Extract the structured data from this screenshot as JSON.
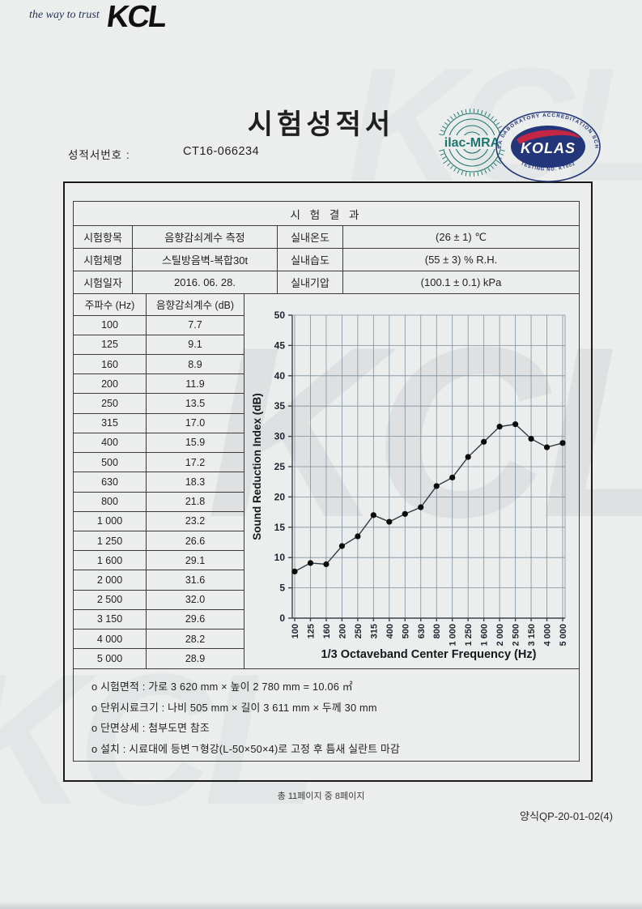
{
  "header": {
    "tagline": "the way to trust",
    "logo_text": "KCL"
  },
  "title": "시험성적서",
  "report": {
    "label": "성적서번호 :",
    "number": "CT16-066234"
  },
  "logos": {
    "ilac_text": "ilac-MRA",
    "kolas_ring_text": "KOREA LABORATORY ACCREDITATION SCHEME",
    "kolas_text": "KOLAS",
    "kolas_sub_text": "TESTING NO. KT002"
  },
  "result_table": {
    "title": "시 험 결 과",
    "rows": [
      {
        "label": "시험항목",
        "value": "음향감쇠계수 측정",
        "label2": "실내온도",
        "value2": "(26 ± 1) ℃"
      },
      {
        "label": "시험체명",
        "value": "스틸방음벽-복합30t",
        "label2": "실내습도",
        "value2": "(55 ± 3) % R.H."
      },
      {
        "label": "시험일자",
        "value": "2016. 06. 28.",
        "label2": "실내기압",
        "value2": "(100.1 ± 0.1) kPa"
      }
    ]
  },
  "freq_table": {
    "col1": "주파수 (Hz)",
    "col2": "음향감쇠계수 (dB)",
    "rows": [
      [
        "100",
        "7.7"
      ],
      [
        "125",
        "9.1"
      ],
      [
        "160",
        "8.9"
      ],
      [
        "200",
        "11.9"
      ],
      [
        "250",
        "13.5"
      ],
      [
        "315",
        "17.0"
      ],
      [
        "400",
        "15.9"
      ],
      [
        "500",
        "17.2"
      ],
      [
        "630",
        "18.3"
      ],
      [
        "800",
        "21.8"
      ],
      [
        "1 000",
        "23.2"
      ],
      [
        "1 250",
        "26.6"
      ],
      [
        "1 600",
        "29.1"
      ],
      [
        "2 000",
        "31.6"
      ],
      [
        "2 500",
        "32.0"
      ],
      [
        "3 150",
        "29.6"
      ],
      [
        "4 000",
        "28.2"
      ],
      [
        "5 000",
        "28.9"
      ]
    ]
  },
  "chart_data": {
    "type": "line",
    "categories": [
      "100",
      "125",
      "160",
      "200",
      "250",
      "315",
      "400",
      "500",
      "630",
      "800",
      "1 000",
      "1 250",
      "1 600",
      "2 000",
      "2 500",
      "3 150",
      "4 000",
      "5 000"
    ],
    "values": [
      7.7,
      9.1,
      8.9,
      11.9,
      13.5,
      17.0,
      15.9,
      17.2,
      18.3,
      21.8,
      23.2,
      26.6,
      29.1,
      31.6,
      32.0,
      29.6,
      28.2,
      28.9
    ],
    "title": "",
    "xlabel": "1/3 Octaveband Center Frequency (Hz)",
    "ylabel": "Sound Reduction Index (dB)",
    "ylim": [
      0,
      50
    ],
    "ytick_step": 5,
    "grid": true,
    "legend": "none",
    "line_color": "#2c3a46",
    "marker_color": "#0b0b0b",
    "grid_color": "#7e90a0",
    "axis_color": "#3a444c"
  },
  "notes": [
    "o 시험면적 : 가로 3 620 mm × 높이 2 780 mm = 10.06 ㎡",
    "o 단위시료크기 : 나비 505 mm × 길이 3 611 mm × 두께 30 mm",
    "o 단면상세 : 첨부도면 참조",
    "o 설치 : 시료대에 등변ㄱ형강(L-50×50×4)로 고정 후 틈새 실란트 마감"
  ],
  "footer": {
    "page_info": "총 11페이지 중 8페이지",
    "form_no": "양식QP-20-01-02(4)"
  },
  "colors": {
    "band_blue": "#5d84c0",
    "band_blue_light": "#b7c7ec",
    "kolas_navy": "#24367a",
    "kolas_red": "#c32744",
    "ilac_teal": "#1e756d",
    "paper": "#eceeed"
  }
}
